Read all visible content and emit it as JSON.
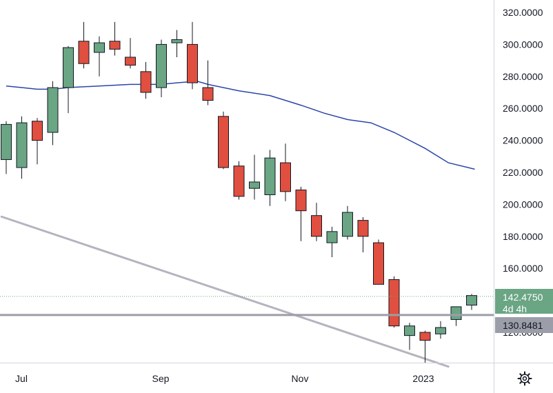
{
  "chart_data": {
    "type": "candlestick",
    "y_ticks": [
      "320.0000",
      "300.0000",
      "280.0000",
      "260.0000",
      "240.0000",
      "220.0000",
      "200.0000",
      "180.0000",
      "160.0000",
      "120.0000"
    ],
    "x_ticks": [
      "Jul",
      "Sep",
      "Nov",
      "2023"
    ],
    "ylim": [
      96,
      327
    ],
    "grid": false,
    "candles": [
      {
        "o": 228,
        "h": 252,
        "l": 219,
        "c": 250
      },
      {
        "o": 223,
        "h": 255,
        "l": 216,
        "c": 251
      },
      {
        "o": 252,
        "h": 254,
        "l": 225,
        "c": 240
      },
      {
        "o": 245,
        "h": 277,
        "l": 237,
        "c": 273
      },
      {
        "o": 273,
        "h": 299,
        "l": 257,
        "c": 298
      },
      {
        "o": 302,
        "h": 314,
        "l": 285,
        "c": 288
      },
      {
        "o": 295,
        "h": 305,
        "l": 280,
        "c": 301
      },
      {
        "o": 302,
        "h": 314,
        "l": 293,
        "c": 297
      },
      {
        "o": 292,
        "h": 304,
        "l": 285,
        "c": 287
      },
      {
        "o": 283,
        "h": 289,
        "l": 266,
        "c": 270
      },
      {
        "o": 273,
        "h": 303,
        "l": 267,
        "c": 300
      },
      {
        "o": 301,
        "h": 309,
        "l": 292,
        "c": 303
      },
      {
        "o": 300,
        "h": 314,
        "l": 272,
        "c": 276
      },
      {
        "o": 273,
        "h": 290,
        "l": 262,
        "c": 265
      },
      {
        "o": 255,
        "h": 258,
        "l": 222,
        "c": 223
      },
      {
        "o": 224,
        "h": 227,
        "l": 203,
        "c": 205
      },
      {
        "o": 210,
        "h": 231,
        "l": 203,
        "c": 214
      },
      {
        "o": 206,
        "h": 234,
        "l": 199,
        "c": 229
      },
      {
        "o": 226,
        "h": 238,
        "l": 202,
        "c": 208
      },
      {
        "o": 209,
        "h": 211,
        "l": 177,
        "c": 196
      },
      {
        "o": 193,
        "h": 201,
        "l": 177,
        "c": 180
      },
      {
        "o": 176,
        "h": 186,
        "l": 167,
        "c": 183
      },
      {
        "o": 180,
        "h": 199,
        "l": 178,
        "c": 195
      },
      {
        "o": 190,
        "h": 192,
        "l": 170,
        "c": 180
      },
      {
        "o": 176,
        "h": 178,
        "l": 150,
        "c": 150
      },
      {
        "o": 153,
        "h": 155,
        "l": 123,
        "c": 124
      },
      {
        "o": 118,
        "h": 126,
        "l": 109,
        "c": 124
      },
      {
        "o": 120,
        "h": 121,
        "l": 101,
        "c": 115
      },
      {
        "o": 119,
        "h": 127,
        "l": 116,
        "c": 123
      },
      {
        "o": 128,
        "h": 134,
        "l": 124,
        "c": 136
      },
      {
        "o": 137,
        "h": 144,
        "l": 134,
        "c": 143
      }
    ],
    "moving_average": [
      {
        "i": 0,
        "v": 274
      },
      {
        "i": 1,
        "v": 273
      },
      {
        "i": 2,
        "v": 272
      },
      {
        "i": 3,
        "v": 272
      },
      {
        "i": 4,
        "v": 273
      },
      {
        "i": 6,
        "v": 274
      },
      {
        "i": 8,
        "v": 275
      },
      {
        "i": 10,
        "v": 275
      },
      {
        "i": 11,
        "v": 276
      },
      {
        "i": 12.3,
        "v": 277
      },
      {
        "i": 13,
        "v": 275
      },
      {
        "i": 15,
        "v": 271
      },
      {
        "i": 17,
        "v": 268
      },
      {
        "i": 19,
        "v": 262
      },
      {
        "i": 20.5,
        "v": 257
      },
      {
        "i": 22,
        "v": 253
      },
      {
        "i": 23.5,
        "v": 251
      },
      {
        "i": 25,
        "v": 245
      },
      {
        "i": 27,
        "v": 235
      },
      {
        "i": 28.5,
        "v": 226
      },
      {
        "i": 30.2,
        "v": 222
      }
    ],
    "trendline": [
      {
        "i": -0.3,
        "v": 192.3
      },
      {
        "i": 28.5,
        "v": 98.6
      }
    ],
    "horizontal_line": 130.8481,
    "last_price": {
      "value": "142.4750",
      "countdown": "4d 4h",
      "numeric": 142.475
    },
    "horizontal_label": "130.8481",
    "colors": {
      "up": "#6aa584",
      "down": "#e04f3f",
      "wick": "#131722",
      "moving_average": "#2a45a8",
      "trendline": "#b5b3be",
      "horizontal_line": "#9b9ea8",
      "last_price_tag": "#6aa584",
      "horizontal_tag": "#9b9ea8"
    }
  },
  "toolbar": {
    "settings_icon": "gear-icon"
  }
}
